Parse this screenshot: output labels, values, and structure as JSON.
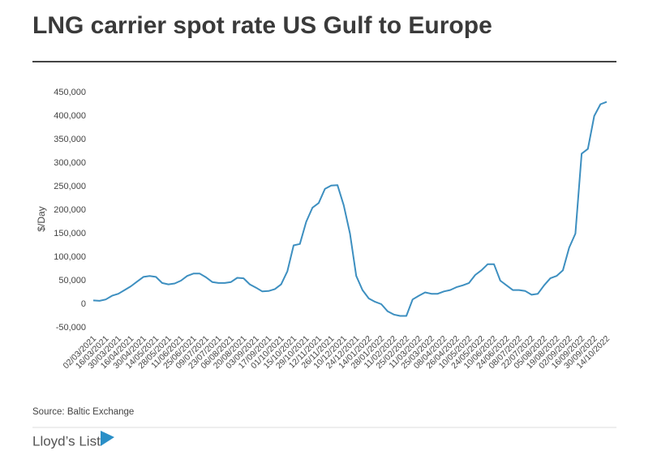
{
  "chart_data": {
    "type": "line",
    "title": "LNG carrier spot rate US Gulf to Europe",
    "y_label": "$/Day",
    "source": "Source: Baltic Exchange",
    "brand": "Lloyd’s List",
    "categories": [
      "02/03/2021",
      null,
      "16/03/2021",
      null,
      "30/03/2021",
      null,
      "16/04/2021",
      null,
      "30/04/2021",
      null,
      "14/05/2021",
      null,
      "28/05/2021",
      null,
      "11/06/2021",
      null,
      "25/06/2021",
      null,
      "09/07/2021",
      null,
      "23/07/2021",
      null,
      "06/08/2021",
      null,
      "20/08/2021",
      null,
      "03/09/2021",
      null,
      "17/09/2021",
      null,
      "01/10/2021",
      null,
      "15/10/2021",
      null,
      "29/10/2021",
      null,
      "12/11/2021",
      null,
      "26/11/2021",
      null,
      "10/12/2021",
      null,
      "24/12/2021",
      null,
      "14/01/2022",
      null,
      "28/01/2022",
      null,
      "11/02/2022",
      null,
      "25/02/2022",
      null,
      "11/03/2022",
      null,
      "25/03/2022",
      null,
      "08/04/2022",
      null,
      "26/04/2022",
      null,
      "10/05/2022",
      null,
      "24/05/2022",
      null,
      "10/06/2022",
      null,
      "24/06/2022",
      null,
      "08/07/2022",
      null,
      "22/07/2022",
      null,
      "05/08/2022",
      null,
      "19/08/2022",
      null,
      "02/09/2022",
      null,
      "16/09/2022",
      null,
      "30/09/2022",
      null,
      "14/10/2022"
    ],
    "values": [
      8000,
      7000,
      10000,
      18000,
      22000,
      30000,
      38000,
      48000,
      58000,
      60000,
      58000,
      45000,
      42000,
      44000,
      50000,
      60000,
      65000,
      65000,
      57000,
      47000,
      45000,
      45000,
      47000,
      56000,
      55000,
      42000,
      35000,
      27000,
      28000,
      32000,
      42000,
      70000,
      125000,
      128000,
      175000,
      205000,
      215000,
      245000,
      252000,
      253000,
      210000,
      150000,
      60000,
      30000,
      12000,
      5000,
      0,
      -15000,
      -22000,
      -25000,
      -25000,
      10000,
      18000,
      25000,
      22000,
      22000,
      27000,
      30000,
      36000,
      40000,
      45000,
      62000,
      72000,
      85000,
      85000,
      50000,
      40000,
      30000,
      30000,
      28000,
      20000,
      22000,
      40000,
      55000,
      60000,
      72000,
      120000,
      150000,
      320000,
      330000,
      400000,
      425000,
      430000
    ],
    "color": "#3d8fc0",
    "ylim": [
      -50000,
      450000
    ],
    "yticks": [
      {
        "value": -50000,
        "label": "-50,000"
      },
      0,
      {
        "value": 50000,
        "label": "50,000"
      },
      {
        "value": 100000,
        "label": "100,000"
      },
      {
        "value": 150000,
        "label": "150,000"
      },
      {
        "value": 200000,
        "label": "200,000"
      },
      {
        "value": 250000,
        "label": "250,000"
      },
      {
        "value": 300000,
        "label": "300,000"
      },
      {
        "value": 350000,
        "label": "350,000"
      },
      {
        "value": 400000,
        "label": "400,000"
      },
      {
        "value": 450000,
        "label": "450,000"
      }
    ],
    "grid": false
  }
}
